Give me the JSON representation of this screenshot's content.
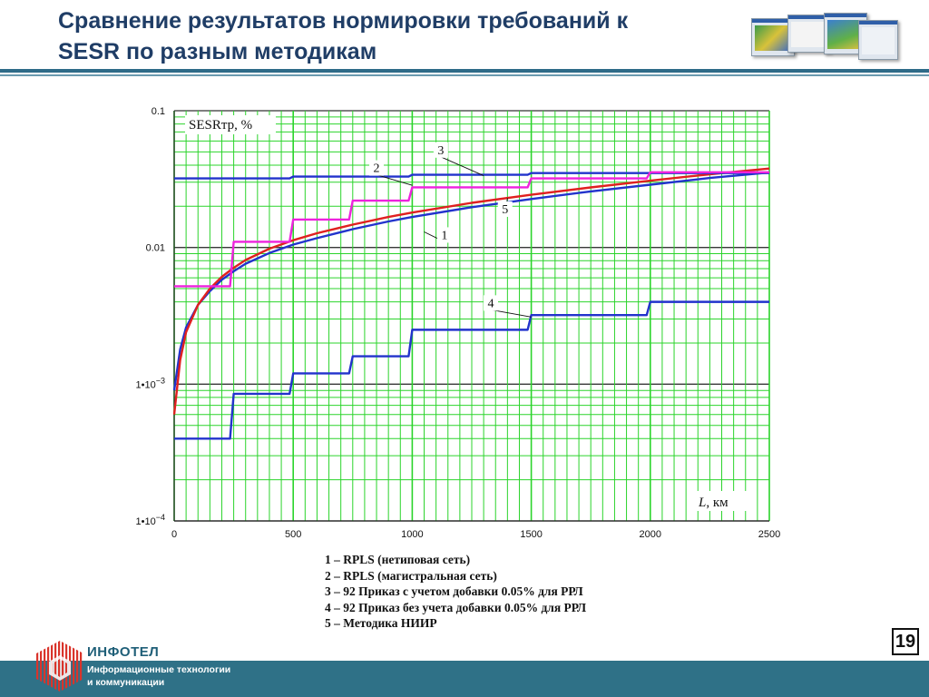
{
  "slide": {
    "title_lines": [
      "Сравнение результатов нормировки требований к",
      "SESR по разным методикам"
    ],
    "page_number": "19",
    "brand": "ИНФОТЕЛ",
    "tagline_lines": [
      "Информационные технологии",
      "и коммуникации"
    ],
    "colors": {
      "title": "#1f3d66",
      "footer": "#2f7187",
      "logo": "#d9342b"
    }
  },
  "chart_data": {
    "type": "line",
    "y_scale": "log",
    "ylabel": "SESRтр, %",
    "xlabel_italic": "L",
    "xlabel_rest": ", км",
    "xlim": [
      0,
      2500
    ],
    "ylim": [
      0.0001,
      0.1
    ],
    "x_ticks": [
      {
        "v": 0,
        "label": "0"
      },
      {
        "v": 500,
        "label": "500"
      },
      {
        "v": 1000,
        "label": "1000"
      },
      {
        "v": 1500,
        "label": "1500"
      },
      {
        "v": 2000,
        "label": "2000"
      },
      {
        "v": 2500,
        "label": "2500"
      }
    ],
    "y_ticks": [
      {
        "v": 0.1,
        "mant": "0.1",
        "exp": ""
      },
      {
        "v": 0.01,
        "mant": "0.01",
        "exp": ""
      },
      {
        "v": 0.001,
        "mant": "1•10",
        "exp": "−3"
      },
      {
        "v": 0.0001,
        "mant": "1•10",
        "exp": "−4"
      }
    ],
    "grid": true,
    "grid_color": "#2bd42b",
    "series": [
      {
        "name": "1",
        "color": "#2233cc",
        "kind": "curve",
        "x": [
          0,
          25,
          50,
          100,
          150,
          200,
          250,
          300,
          400,
          500,
          600,
          750,
          900,
          1000,
          1250,
          1500,
          1750,
          2000,
          2250,
          2500
        ],
        "y": [
          0.0009,
          0.0018,
          0.0026,
          0.0038,
          0.0048,
          0.0058,
          0.0067,
          0.0076,
          0.0091,
          0.0105,
          0.0117,
          0.0136,
          0.0155,
          0.0167,
          0.0197,
          0.0226,
          0.0257,
          0.0288,
          0.0322,
          0.0353
        ]
      },
      {
        "name": "2",
        "color": "#e02020",
        "kind": "curve",
        "x": [
          0,
          25,
          50,
          100,
          150,
          200,
          250,
          300,
          400,
          500,
          600,
          750,
          900,
          1000,
          1250,
          1500,
          1750,
          2000,
          2250,
          2500
        ],
        "y": [
          0.0006,
          0.0015,
          0.0024,
          0.0038,
          0.005,
          0.0061,
          0.0071,
          0.0081,
          0.0098,
          0.0113,
          0.0127,
          0.0147,
          0.0167,
          0.018,
          0.0212,
          0.0243,
          0.0275,
          0.0308,
          0.0343,
          0.0378
        ]
      },
      {
        "name": "3",
        "color": "#2233cc",
        "kind": "step",
        "x": [
          0,
          500,
          1000,
          1500,
          2000,
          2500
        ],
        "y": [
          0.032,
          0.033,
          0.034,
          0.035,
          0.035,
          0.035
        ]
      },
      {
        "name": "4",
        "color": "#2233cc",
        "kind": "step",
        "x": [
          0,
          250,
          500,
          750,
          1000,
          1500,
          2000,
          2500
        ],
        "y": [
          0.0004,
          0.00085,
          0.0012,
          0.0016,
          0.0025,
          0.0032,
          0.004,
          0.004
        ]
      },
      {
        "name": "5",
        "color": "#ee22dd",
        "kind": "step",
        "x": [
          0,
          250,
          500,
          750,
          1000,
          1500,
          2000,
          2500
        ],
        "y": [
          0.0052,
          0.011,
          0.016,
          0.022,
          0.0275,
          0.032,
          0.0355,
          0.0355
        ]
      }
    ],
    "annotations": [
      {
        "label": "1",
        "x": 1050,
        "y": 0.013,
        "tx": 1135,
        "ty": 0.011
      },
      {
        "label": "2",
        "x": 1000,
        "y": 0.0285,
        "tx": 850,
        "ty": 0.034
      },
      {
        "label": "3",
        "x": 1300,
        "y": 0.0335,
        "tx": 1120,
        "ty": 0.046
      },
      {
        "label": "4",
        "x": 1500,
        "y": 0.0031,
        "tx": 1330,
        "ty": 0.0035
      },
      {
        "label": "5",
        "x": 1400,
        "y": 0.023,
        "tx": 1390,
        "ty": 0.017
      }
    ],
    "legend": [
      "1 – RPLS (нетиповая сеть)",
      "2 – RPLS (магистральная сеть)",
      "3 – 92 Приказ с учетом добавки 0.05% для РРЛ",
      "4 – 92 Приказ без учета добавки 0.05% для РРЛ",
      "5 – Методика НИИР"
    ]
  }
}
